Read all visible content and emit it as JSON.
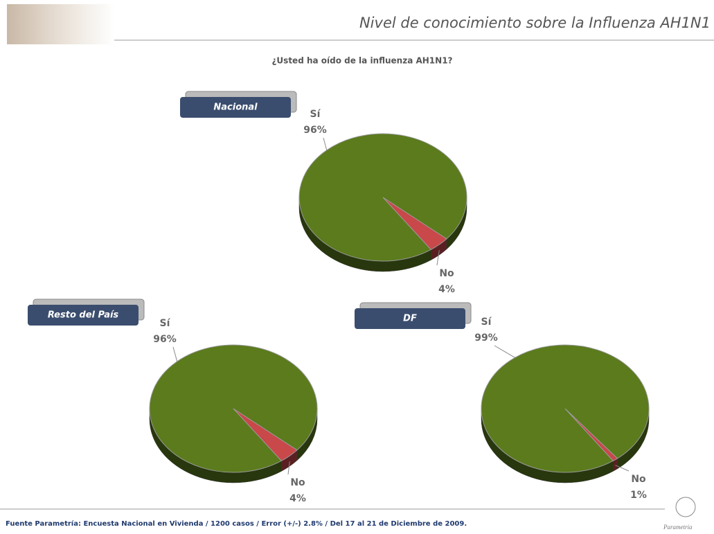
{
  "header": {
    "title": "Nivel de conocimiento sobre la Influenza AH1N1",
    "subtitle": "¿Usted ha oído de la influenza AH1N1?"
  },
  "footer": {
    "source": "Fuente Parametría: Encuesta Nacional en Vivienda / 1200 casos / Error (+/-) 2.8% / Del 17 al 21 de Diciembre de 2009.",
    "logo": "Parametria"
  },
  "chart_data": [
    {
      "type": "pie",
      "title": "Nacional",
      "categories": [
        "Sí",
        "No"
      ],
      "values": [
        96,
        4
      ],
      "value_labels": [
        "96%",
        "4%"
      ],
      "colors": [
        "#5b7b1d",
        "#c9484a"
      ]
    },
    {
      "type": "pie",
      "title": "Resto del País",
      "categories": [
        "Sí",
        "No"
      ],
      "values": [
        96,
        4
      ],
      "value_labels": [
        "96%",
        "4%"
      ],
      "colors": [
        "#5b7b1d",
        "#c9484a"
      ]
    },
    {
      "type": "pie",
      "title": "DF",
      "categories": [
        "Sí",
        "No"
      ],
      "values": [
        99,
        1
      ],
      "value_labels": [
        "99%",
        "1%"
      ],
      "colors": [
        "#5b7b1d",
        "#c9484a"
      ]
    }
  ]
}
